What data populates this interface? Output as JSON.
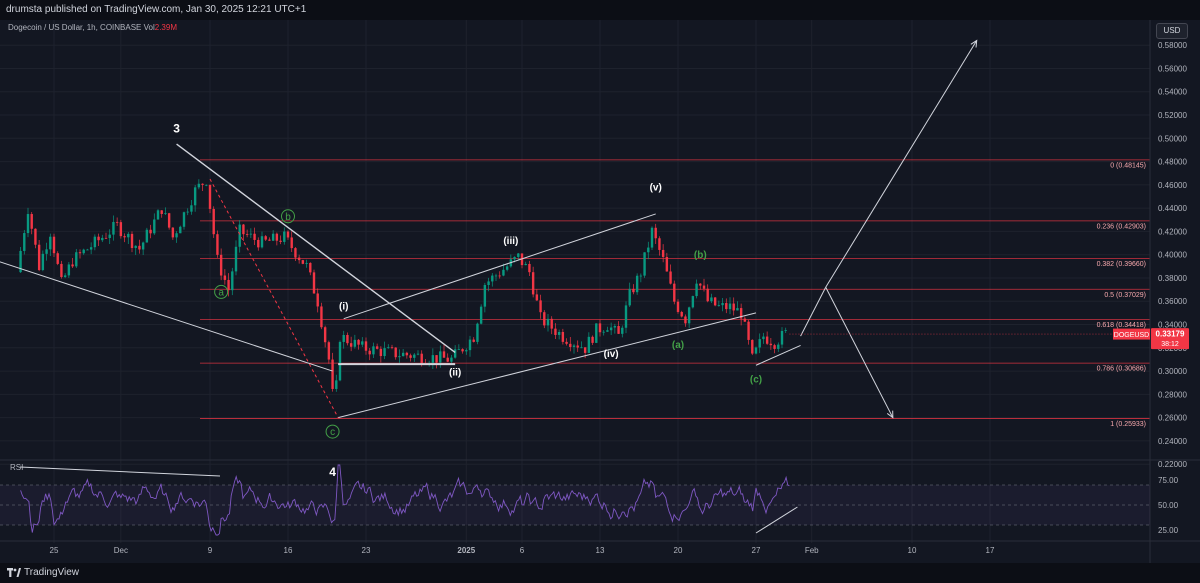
{
  "header": {
    "publisher": "drumsta published on TradingView.com, Jan 30, 2025 12:21 UTC+1"
  },
  "footer": {
    "brand": "TradingView"
  },
  "legend": {
    "symbol": "Dogecoin / US Dollar, 1h, COINBASE",
    "vol_label": "Vol",
    "vol_value": "2.39M"
  },
  "currency": "USD",
  "colors": {
    "background": "#131722",
    "up": "#089981",
    "down": "#f23645",
    "fib_line": "#f23645",
    "fib_text": "#f7a8ad",
    "wave_white": "#ffffff",
    "wave_green": "#43a047",
    "rsi_line": "#7e57c2"
  },
  "chart_data": {
    "type": "candlestick",
    "price_axis": {
      "ylim": [
        0.2,
        0.6
      ],
      "ticks": [
        "0.58000",
        "0.56000",
        "0.54000",
        "0.52000",
        "0.50000",
        "0.48000",
        "0.46000",
        "0.44000",
        "0.42000",
        "0.40000",
        "0.38000",
        "0.36000",
        "0.34000",
        "0.32000",
        "0.30000",
        "0.28000",
        "0.26000",
        "0.24000",
        "0.22000"
      ]
    },
    "time_axis": {
      "ticks": [
        "25",
        "Dec",
        "9",
        "16",
        "23",
        "2025",
        "6",
        "13",
        "20",
        "27",
        "Feb",
        "10",
        "17"
      ]
    },
    "price_anchors": [
      [
        "Nov 22",
        0.385
      ],
      [
        "Nov 23",
        0.44
      ],
      [
        "Nov 24",
        0.39
      ],
      [
        "Nov 25",
        0.42
      ],
      [
        "Nov 26",
        0.375
      ],
      [
        "Nov 27",
        0.395
      ],
      [
        "Nov 29",
        0.41
      ],
      [
        "Dec 1",
        0.425
      ],
      [
        "Dec 3",
        0.405
      ],
      [
        "Dec 5",
        0.44
      ],
      [
        "Dec 6",
        0.415
      ],
      [
        "Dec 8",
        0.455
      ],
      [
        "Dec 9",
        0.465
      ],
      [
        "Dec 10",
        0.395
      ],
      [
        "Dec 11",
        0.37
      ],
      [
        "Dec 12",
        0.42
      ],
      [
        "Dec 14",
        0.41
      ],
      [
        "Dec 16",
        0.415
      ],
      [
        "Dec 18",
        0.39
      ],
      [
        "Dec 19",
        0.36
      ],
      [
        "Dec 20",
        0.31
      ],
      [
        "Dec 20 12:00",
        0.265
      ],
      [
        "Dec 21",
        0.33
      ],
      [
        "Dec 23",
        0.32
      ],
      [
        "Dec 26",
        0.315
      ],
      [
        "Dec 29",
        0.312
      ],
      [
        "Dec 31",
        0.31
      ],
      [
        "Jan 2",
        0.33
      ],
      [
        "Jan 3",
        0.375
      ],
      [
        "Jan 5",
        0.39
      ],
      [
        "Jan 6",
        0.398
      ],
      [
        "Jan 7",
        0.385
      ],
      [
        "Jan 8",
        0.345
      ],
      [
        "Jan 10",
        0.33
      ],
      [
        "Jan 12",
        0.32
      ],
      [
        "Jan 13",
        0.335
      ],
      [
        "Jan 14",
        0.34
      ],
      [
        "Jan 15",
        0.33
      ],
      [
        "Jan 16",
        0.365
      ],
      [
        "Jan 17",
        0.385
      ],
      [
        "Jan 18",
        0.42
      ],
      [
        "Jan 19",
        0.395
      ],
      [
        "Jan 20",
        0.36
      ],
      [
        "Jan 21",
        0.345
      ],
      [
        "Jan 22",
        0.38
      ],
      [
        "Jan 23",
        0.36
      ],
      [
        "Jan 24",
        0.355
      ],
      [
        "Jan 25",
        0.355
      ],
      [
        "Jan 26",
        0.35
      ],
      [
        "Jan 27",
        0.31
      ],
      [
        "Jan 28",
        0.33
      ],
      [
        "Jan 29",
        0.325
      ],
      [
        "Jan 30",
        0.332
      ]
    ],
    "last_price": {
      "label": "DOGEUSD",
      "value": "0.33179",
      "countdown": "38:12"
    },
    "fib_levels": [
      {
        "ratio": "0",
        "price": 0.48145,
        "label": "0 (0.48145)"
      },
      {
        "ratio": "0.236",
        "price": 0.42903,
        "label": "0.236 (0.42903)"
      },
      {
        "ratio": "0.382",
        "price": 0.3966,
        "label": "0.382 (0.39660)"
      },
      {
        "ratio": "0.5",
        "price": 0.37029,
        "label": "0.5 (0.37029)"
      },
      {
        "ratio": "0.618",
        "price": 0.34418,
        "label": "0.618 (0.34418)"
      },
      {
        "ratio": "0.786",
        "price": 0.30686,
        "label": "0.786 (0.30686)"
      },
      {
        "ratio": "1",
        "price": 0.25933,
        "label": "1 (0.25933)"
      }
    ],
    "wave_labels": [
      {
        "text": "3",
        "style": "plain-white",
        "at": [
          "Dec 6",
          0.505
        ]
      },
      {
        "text": "4",
        "style": "plain-white",
        "at": [
          "Dec 20",
          0.21
        ]
      },
      {
        "text": "a",
        "style": "circled-green",
        "at": [
          "Dec 10",
          0.365
        ]
      },
      {
        "text": "b",
        "style": "circled-green",
        "at": [
          "Dec 16",
          0.43
        ]
      },
      {
        "text": "c",
        "style": "circled-green",
        "at": [
          "Dec 20",
          0.245
        ]
      },
      {
        "text": "(i)",
        "style": "white",
        "at": [
          "Dec 21",
          0.353
        ]
      },
      {
        "text": "(ii)",
        "style": "white",
        "at": [
          "Dec 31",
          0.296
        ]
      },
      {
        "text": "(iii)",
        "style": "white",
        "at": [
          "Jan 5",
          0.409
        ]
      },
      {
        "text": "(iv)",
        "style": "white",
        "at": [
          "Jan 14",
          0.312
        ]
      },
      {
        "text": "(v)",
        "style": "white",
        "at": [
          "Jan 18",
          0.455
        ]
      },
      {
        "text": "(a)",
        "style": "green",
        "at": [
          "Jan 20",
          0.32
        ]
      },
      {
        "text": "(b)",
        "style": "green",
        "at": [
          "Jan 22",
          0.397
        ]
      },
      {
        "text": "(c)",
        "style": "green",
        "at": [
          "Jan 27",
          0.29
        ]
      }
    ],
    "rsi": {
      "label": "RSI",
      "ticks": [
        "75.00",
        "50.00",
        "25.00"
      ],
      "ylim": [
        15,
        95
      ],
      "band": [
        30,
        70
      ]
    }
  }
}
